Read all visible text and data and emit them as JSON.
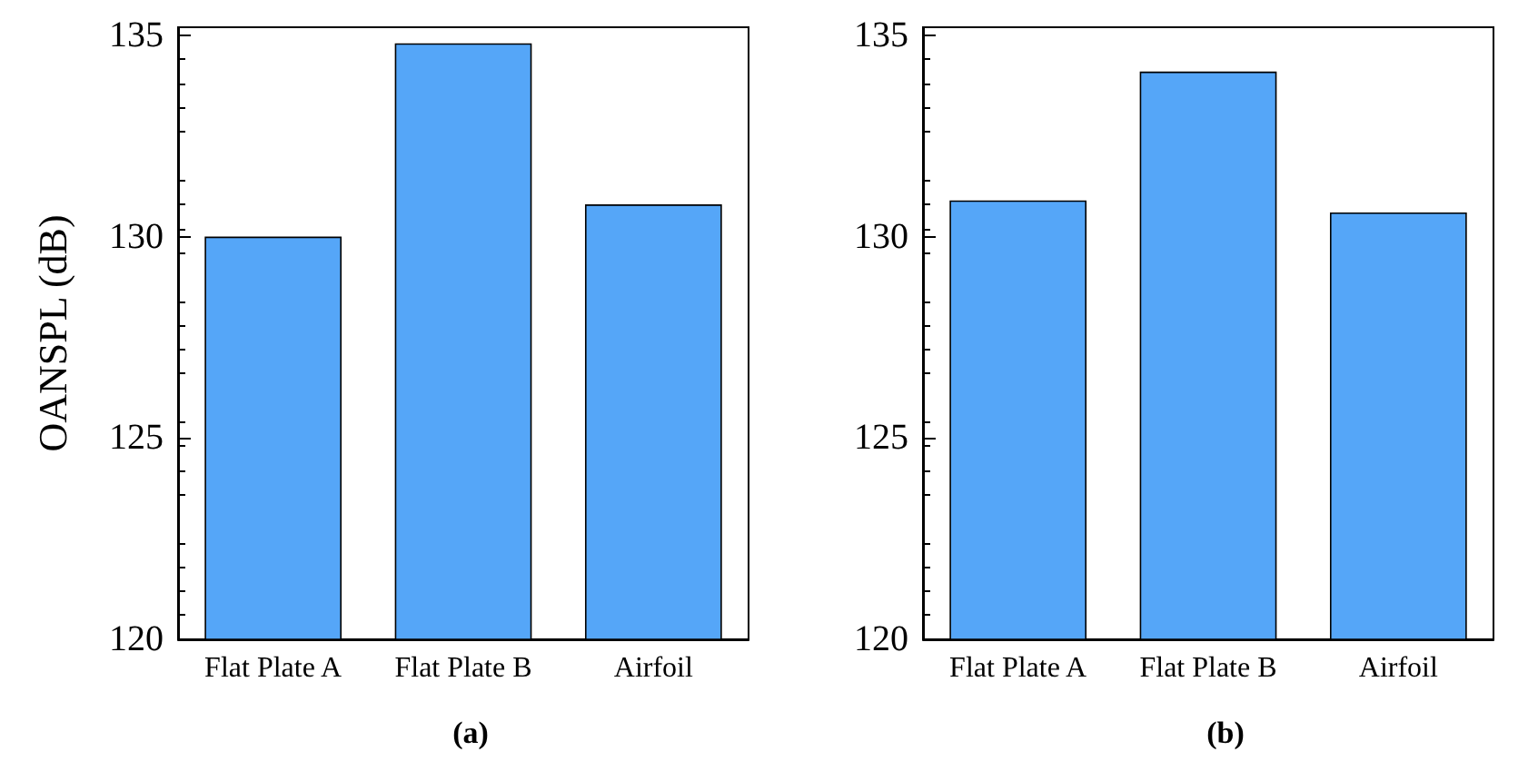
{
  "chart_data": [
    {
      "type": "bar",
      "ylabel": "OANSPL (dB)",
      "categories": [
        "Flat Plate A",
        "Flat Plate B",
        "Airfoil"
      ],
      "values": [
        130.0,
        134.8,
        130.8
      ],
      "color": "#55a6f8",
      "ylim": [
        120,
        135.2
      ],
      "yticks": [
        120,
        125,
        130,
        135
      ],
      "grid": false,
      "annotations": [
        "(a)"
      ]
    },
    {
      "type": "bar",
      "categories": [
        "Flat Plate A",
        "Flat Plate B",
        "Airfoil"
      ],
      "values": [
        130.9,
        134.1,
        130.6
      ],
      "color": "#55a6f8",
      "ylim": [
        120,
        135.2
      ],
      "yticks": [
        120,
        125,
        130,
        135
      ],
      "grid": false,
      "annotations": [
        "(b)"
      ]
    }
  ]
}
